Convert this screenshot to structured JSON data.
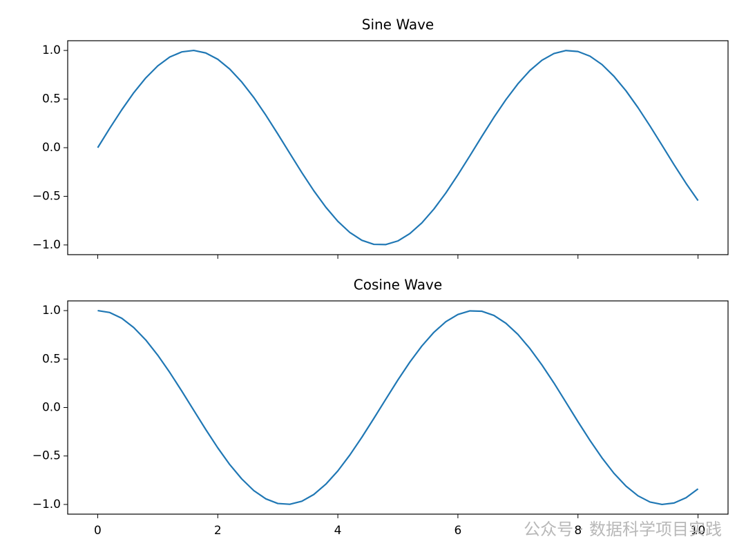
{
  "chart_data": [
    {
      "type": "line",
      "title": "Sine Wave",
      "color": "#1f77b4",
      "x": [
        0,
        0.2,
        0.4,
        0.6,
        0.8,
        1.0,
        1.2,
        1.4,
        1.6,
        1.8,
        2.0,
        2.2,
        2.4,
        2.6,
        2.8,
        3.0,
        3.2,
        3.4,
        3.6,
        3.8,
        4.0,
        4.2,
        4.4,
        4.6,
        4.8,
        5.0,
        5.2,
        5.4,
        5.6,
        5.8,
        6.0,
        6.2,
        6.4,
        6.6,
        6.8,
        7.0,
        7.2,
        7.4,
        7.6,
        7.8,
        8.0,
        8.2,
        8.4,
        8.6,
        8.8,
        9.0,
        9.2,
        9.4,
        9.6,
        9.8,
        10.0
      ],
      "values": [
        0,
        0.199,
        0.389,
        0.565,
        0.717,
        0.841,
        0.932,
        0.985,
        1.0,
        0.974,
        0.909,
        0.808,
        0.675,
        0.516,
        0.335,
        0.141,
        -0.058,
        -0.256,
        -0.443,
        -0.612,
        -0.757,
        -0.872,
        -0.952,
        -0.994,
        -0.996,
        -0.959,
        -0.883,
        -0.773,
        -0.631,
        -0.465,
        -0.279,
        -0.083,
        0.117,
        0.312,
        0.494,
        0.657,
        0.794,
        0.899,
        0.968,
        0.999,
        0.989,
        0.941,
        0.855,
        0.734,
        0.585,
        0.412,
        0.223,
        0.025,
        -0.174,
        -0.366,
        -0.544
      ],
      "xlim": [
        -0.5,
        10.5
      ],
      "ylim": [
        -1.1,
        1.1
      ],
      "xticks": [
        0,
        2,
        4,
        6,
        8,
        10
      ],
      "yticks": [
        {
          "value": 1,
          "label": "1.0"
        },
        {
          "value": 0.5,
          "label": "0.5"
        },
        {
          "value": 0,
          "label": "0.0"
        },
        {
          "value": -0.5,
          "label": "−0.5"
        },
        {
          "value": -1,
          "label": "−1.0"
        }
      ]
    },
    {
      "type": "line",
      "title": "Cosine Wave",
      "color": "#1f77b4",
      "x": [
        0,
        0.2,
        0.4,
        0.6,
        0.8,
        1.0,
        1.2,
        1.4,
        1.6,
        1.8,
        2.0,
        2.2,
        2.4,
        2.6,
        2.8,
        3.0,
        3.2,
        3.4,
        3.6,
        3.8,
        4.0,
        4.2,
        4.4,
        4.6,
        4.8,
        5.0,
        5.2,
        5.4,
        5.6,
        5.8,
        6.0,
        6.2,
        6.4,
        6.6,
        6.8,
        7.0,
        7.2,
        7.4,
        7.6,
        7.8,
        8.0,
        8.2,
        8.4,
        8.6,
        8.8,
        9.0,
        9.2,
        9.4,
        9.6,
        9.8,
        10.0
      ],
      "values": [
        1,
        0.98,
        0.921,
        0.825,
        0.697,
        0.54,
        0.362,
        0.17,
        -0.029,
        -0.227,
        -0.416,
        -0.589,
        -0.737,
        -0.857,
        -0.942,
        -0.99,
        -0.998,
        -0.967,
        -0.897,
        -0.791,
        -0.654,
        -0.49,
        -0.307,
        -0.112,
        0.087,
        0.284,
        0.469,
        0.635,
        0.776,
        0.886,
        0.96,
        0.997,
        0.993,
        0.95,
        0.869,
        0.754,
        0.608,
        0.439,
        0.253,
        0.054,
        -0.146,
        -0.339,
        -0.519,
        -0.679,
        -0.811,
        -0.911,
        -0.975,
        -1.0,
        -0.985,
        -0.931,
        -0.839
      ],
      "xlim": [
        -0.5,
        10.5
      ],
      "ylim": [
        -1.1,
        1.1
      ],
      "xticks": [
        0,
        2,
        4,
        6,
        8,
        10
      ],
      "yticks": [
        {
          "value": 1,
          "label": "1.0"
        },
        {
          "value": 0.5,
          "label": "0.5"
        },
        {
          "value": 0,
          "label": "0.0"
        },
        {
          "value": -0.5,
          "label": "−0.5"
        },
        {
          "value": -1,
          "label": "−1.0"
        }
      ]
    }
  ],
  "watermark": "公众号 · 数据科学项目实践"
}
